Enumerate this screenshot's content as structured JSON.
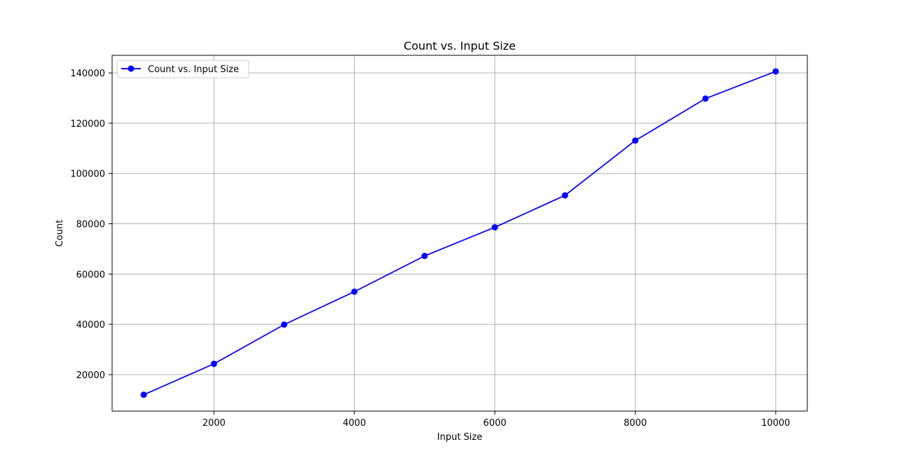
{
  "chart_data": {
    "type": "line",
    "title": "Count vs. Input Size",
    "xlabel": "Input Size",
    "ylabel": "Count",
    "xlim": [
      550,
      10450
    ],
    "ylim": [
      5500,
      147000
    ],
    "x_ticks": [
      2000,
      4000,
      6000,
      8000,
      10000
    ],
    "y_ticks": [
      20000,
      40000,
      60000,
      80000,
      100000,
      120000,
      140000
    ],
    "grid": true,
    "legend": {
      "placement": "top-left",
      "entries": [
        "Count vs. Input Size"
      ]
    },
    "series": [
      {
        "name": "Count vs. Input Size",
        "color": "#0000ff",
        "marker": "circle",
        "x": [
          1000,
          2000,
          3000,
          4000,
          5000,
          6000,
          7000,
          8000,
          9000,
          10000
        ],
        "y": [
          12000,
          24300,
          39900,
          53000,
          67200,
          78600,
          91300,
          113100,
          129800,
          140600
        ]
      }
    ]
  }
}
